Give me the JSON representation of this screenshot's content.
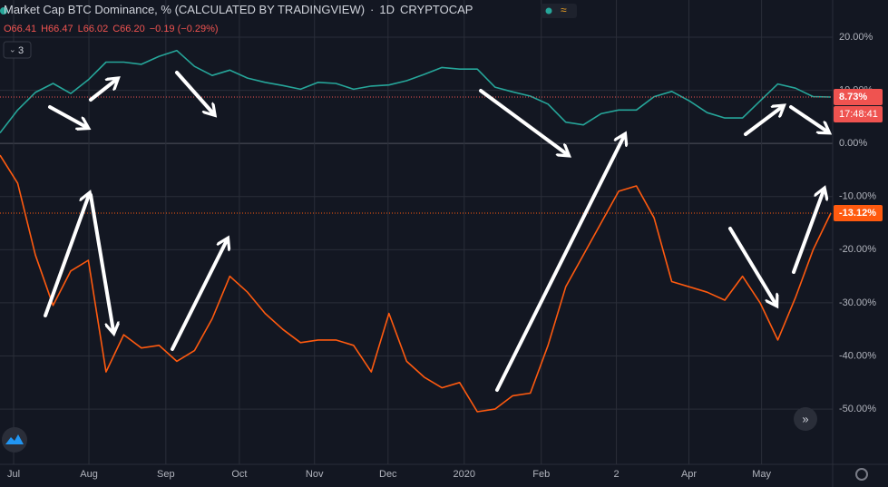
{
  "chart_data": {
    "type": "line",
    "title": "Market Cap BTC Dominance, % (CALCULATED BY TRADINGVIEW)",
    "interval": "1D",
    "exchange": "CRYPTOCAP",
    "ohlc": [
      "O66.41",
      "H66.47",
      "L66.02",
      "C66.20",
      "−0.19 (−0.29%)"
    ],
    "indicators_button": "3",
    "countdown": "17:48:41",
    "xlim": [
      0,
      47
    ],
    "xticks": [
      {
        "value": 0.77,
        "label": "Jul"
      },
      {
        "value": 5.03,
        "label": "Aug"
      },
      {
        "value": 9.38,
        "label": "Sep"
      },
      {
        "value": 13.54,
        "label": "Oct"
      },
      {
        "value": 17.79,
        "label": "Nov"
      },
      {
        "value": 21.95,
        "label": "Dec"
      },
      {
        "value": 26.26,
        "label": "2020"
      },
      {
        "value": 30.62,
        "label": "Feb"
      },
      {
        "value": 34.87,
        "label": "2"
      },
      {
        "value": 38.97,
        "label": "Apr"
      },
      {
        "value": 43.08,
        "label": "May"
      }
    ],
    "ylim": [
      -60.4,
      27
    ],
    "yticks": [
      {
        "value": 20,
        "label": "20.00%"
      },
      {
        "value": 10,
        "label": "10.00%"
      },
      {
        "value": 0,
        "label": "0.00%"
      },
      {
        "value": -10,
        "label": "-10.00%"
      },
      {
        "value": -20,
        "label": "-20.00%"
      },
      {
        "value": -30,
        "label": "-30.00%"
      },
      {
        "value": -40,
        "label": "-40.00%"
      },
      {
        "value": -50,
        "label": "-50.00%"
      }
    ],
    "grid": true,
    "series": [
      {
        "color": "#26a69a",
        "values": [
          2,
          6.3,
          9.6,
          11.3,
          9.4,
          12,
          15.3,
          15.3,
          14.9,
          16.4,
          17.5,
          14.5,
          12.8,
          13.8,
          12.3,
          11.5,
          10.9,
          10.2,
          11.5,
          11.3,
          10.2,
          10.8,
          11,
          11.8,
          13,
          14.3,
          14,
          14,
          10.6,
          9.7,
          8.9,
          7.4,
          4,
          3.5,
          5.6,
          6.3,
          6.3,
          8.8,
          9.8,
          8,
          5.8,
          4.8,
          4.8,
          8,
          11.2,
          10.4,
          8.8,
          8.73
        ]
      },
      {
        "color": "#ff5a0f",
        "values": [
          -2.2,
          -7.5,
          -21,
          -30.5,
          -24,
          -22,
          -43,
          -36,
          -38.5,
          -38,
          -41,
          -39,
          -33,
          -25,
          -28,
          -32,
          -35,
          -37.5,
          -37,
          -37,
          -38,
          -43,
          -32,
          -41,
          -44,
          -46,
          -45,
          -50.5,
          -50,
          -47.5,
          -47,
          -38,
          -27,
          -21,
          -15,
          -9,
          -8,
          -14,
          -26,
          -27,
          -28,
          -29.5,
          -25,
          -30,
          -37,
          -29,
          -20,
          -13.12
        ]
      }
    ],
    "price_labels": [
      {
        "value": 8.73,
        "label": "8.73%",
        "color": "#ef5350"
      },
      {
        "value": -13.12,
        "label": "-13.12%",
        "color": "#ff5a0f"
      }
    ]
  }
}
